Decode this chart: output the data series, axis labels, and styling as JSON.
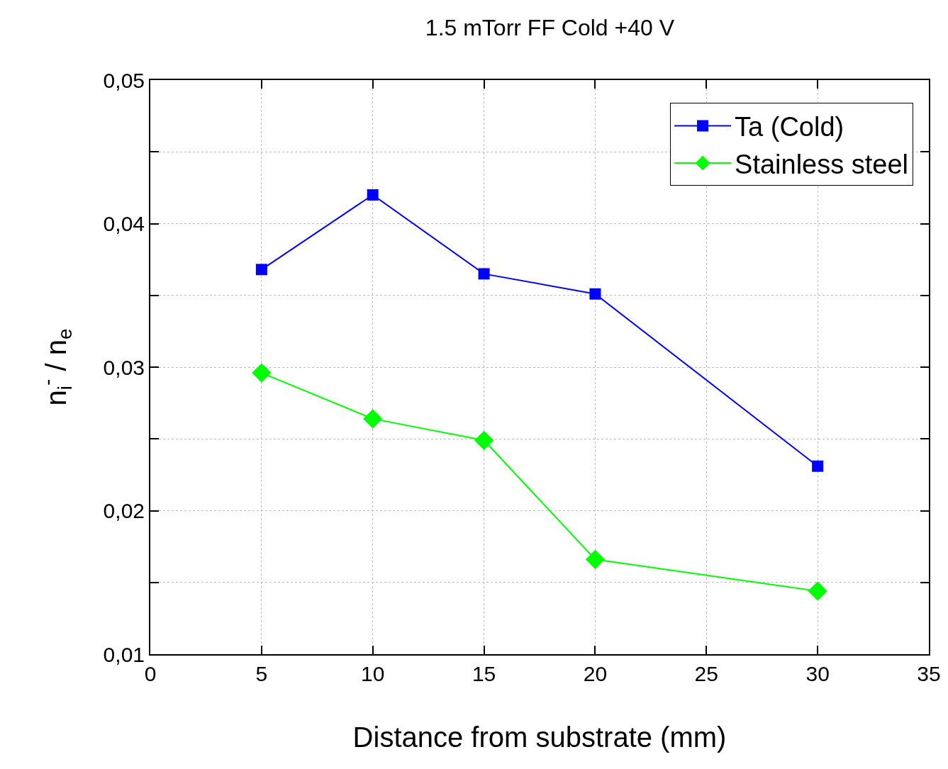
{
  "chart_data": {
    "type": "line",
    "title": "1.5 mTorr FF Cold +40 V",
    "xlabel": "Distance from substrate (mm)",
    "ylabel": "n$_{i}$$^{-}$ / n$_{e}$",
    "x": [
      5,
      10,
      15,
      20,
      30
    ],
    "series": [
      {
        "name": "Ta (Cold)",
        "color": "#0000ff",
        "marker": "square",
        "values": [
          0.0368,
          0.042,
          0.0365,
          0.0351,
          0.0231
        ]
      },
      {
        "name": "Stainless steel",
        "color": "#00ff00",
        "marker": "diamond",
        "values": [
          0.0296,
          0.0264,
          0.0249,
          0.0166,
          0.0144
        ]
      }
    ],
    "xlim": [
      0,
      35
    ],
    "xticks": [
      0,
      5,
      10,
      15,
      20,
      25,
      30,
      35
    ],
    "ylim": [
      0.01,
      0.05
    ],
    "yticks": [
      {
        "value": 0.01,
        "label": "0,01"
      },
      {
        "value": 0.015,
        "label": null
      },
      {
        "value": 0.02,
        "label": "0,02"
      },
      {
        "value": 0.025,
        "label": null
      },
      {
        "value": 0.03,
        "label": "0,03"
      },
      {
        "value": 0.035,
        "label": null
      },
      {
        "value": 0.04,
        "label": "0,04"
      },
      {
        "value": 0.045,
        "label": null
      },
      {
        "value": 0.05,
        "label": "0,05"
      }
    ],
    "grid": true,
    "legend": "top right",
    "line_style": "solid"
  }
}
